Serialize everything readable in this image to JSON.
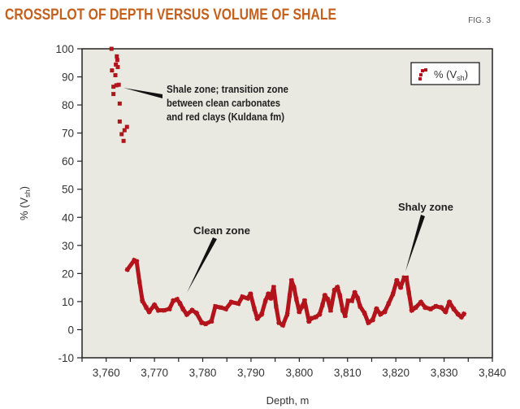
{
  "title": "CROSSPLOT OF DEPTH VERSUS VOLUME OF SHALE",
  "figure_label": "FIG. 3",
  "colors": {
    "title": "#c4601d",
    "marker": "#b3141c",
    "plot_bg": "#e9e8e1"
  },
  "chart_data": {
    "type": "scatter",
    "title": "CROSSPLOT OF DEPTH VERSUS VOLUME OF SHALE",
    "xlabel": "Depth, m",
    "ylabel_main": "% (V",
    "ylabel_sub": "sh",
    "ylabel_close": ")",
    "xlim": [
      3755,
      3840
    ],
    "ylim": [
      -10,
      100
    ],
    "xticks": [
      3760,
      3770,
      3780,
      3790,
      3800,
      3810,
      3820,
      3830,
      3840
    ],
    "xtick_labels": [
      "3,760",
      "3,770",
      "3,780",
      "3,790",
      "3,800",
      "3,810",
      "3,820",
      "3,830",
      "3,840"
    ],
    "yticks": [
      100,
      90,
      80,
      70,
      60,
      50,
      40,
      30,
      20,
      10,
      0,
      -10
    ],
    "ytick_labels": [
      "100",
      "90",
      "80",
      "70",
      "60",
      "50",
      "40",
      "30",
      "20",
      "10",
      "0",
      "-10"
    ],
    "grid": false,
    "legend": {
      "placement": "top-right",
      "label_main": "% (V",
      "label_sub": "sh",
      "label_close": ")"
    },
    "series": [
      {
        "name": "% (Vsh)",
        "color": "#b3141c",
        "x": [
          3761.1,
          3762.2,
          3762.3,
          3762.0,
          3762.4,
          3761.2,
          3761.9,
          3761.5,
          3762.6,
          3762.1,
          3761.5,
          3762.8,
          3762.8,
          3764.3,
          3763.8,
          3763.2,
          3763.6,
          3764.4,
          3765.8,
          3766.3,
          3766.9,
          3767.5,
          3768.3,
          3768.9,
          3770.0,
          3770.8,
          3772.0,
          3773.1,
          3773.9,
          3774.7,
          3775.3,
          3775.9,
          3776.7,
          3777.8,
          3778.7,
          3779.8,
          3780.6,
          3781.8,
          3782.6,
          3783.7,
          3784.8,
          3785.9,
          3787.4,
          3788.2,
          3789.3,
          3789.9,
          3790.7,
          3791.3,
          3792.2,
          3793.0,
          3793.6,
          3794.1,
          3794.7,
          3795.2,
          3795.8,
          3796.6,
          3797.5,
          3798.0,
          3798.4,
          3798.9,
          3799.4,
          3800.0,
          3800.6,
          3801.1,
          3802.0,
          3802.5,
          3803.4,
          3804.2,
          3804.8,
          3805.3,
          3805.9,
          3806.5,
          3807.3,
          3807.9,
          3808.4,
          3809.0,
          3809.5,
          3810.1,
          3810.9,
          3811.5,
          3812.1,
          3812.6,
          3813.5,
          3814.3,
          3815.2,
          3816.0,
          3816.8,
          3817.7,
          3818.5,
          3819.4,
          3820.2,
          3821.0,
          3821.7,
          3822.2,
          3822.7,
          3823.3,
          3824.1,
          3825.2,
          3826.1,
          3827.2,
          3828.3,
          3829.4,
          3830.3,
          3831.1,
          3832.0,
          3832.9,
          3833.6,
          3834.1
        ],
        "y": [
          100,
          97.3,
          96,
          94.4,
          93.5,
          92.3,
          90.6,
          86.5,
          87.2,
          87,
          83.9,
          80.5,
          74.1,
          72.2,
          71,
          69.6,
          67.2,
          21.4,
          24.7,
          24.3,
          17.0,
          10.3,
          7.9,
          6.4,
          8.8,
          6.9,
          6.9,
          7.4,
          10.3,
          10.8,
          9.3,
          7.4,
          5.4,
          6.9,
          5.9,
          2.5,
          2.1,
          3.0,
          8.3,
          7.9,
          7.4,
          9.8,
          9.3,
          11.7,
          11.2,
          12.7,
          7.4,
          4.0,
          5.5,
          10.3,
          12.7,
          11.2,
          15.1,
          8.3,
          2.5,
          1.6,
          5.5,
          12.2,
          17.5,
          15.1,
          10.8,
          6.4,
          8.3,
          10.3,
          3.0,
          4.0,
          4.5,
          5.5,
          8.8,
          12.2,
          10.8,
          6.9,
          14.1,
          15.1,
          12.2,
          6.9,
          5.0,
          10.3,
          10.3,
          13.2,
          11.2,
          8.3,
          5.9,
          2.5,
          3.5,
          7.4,
          5.5,
          6.4,
          9.3,
          12.7,
          17.5,
          15.1,
          18.5,
          18.5,
          13.2,
          6.9,
          7.9,
          9.8,
          7.9,
          7.4,
          8.3,
          7.9,
          6.4,
          9.8,
          7.4,
          5.5,
          4.5,
          5.6
        ]
      }
    ],
    "annotations": [
      {
        "lines": [
          "Shale zone; transition zone",
          "between clean carbonates",
          "and red clays (Kuldana fm)"
        ],
        "target": [
          3762.8,
          86
        ]
      },
      {
        "lines": [
          "Clean zone"
        ],
        "target": [
          3776,
          8
        ]
      },
      {
        "lines": [
          "Shaly zone"
        ],
        "target": [
          3821.5,
          20
        ]
      }
    ]
  }
}
